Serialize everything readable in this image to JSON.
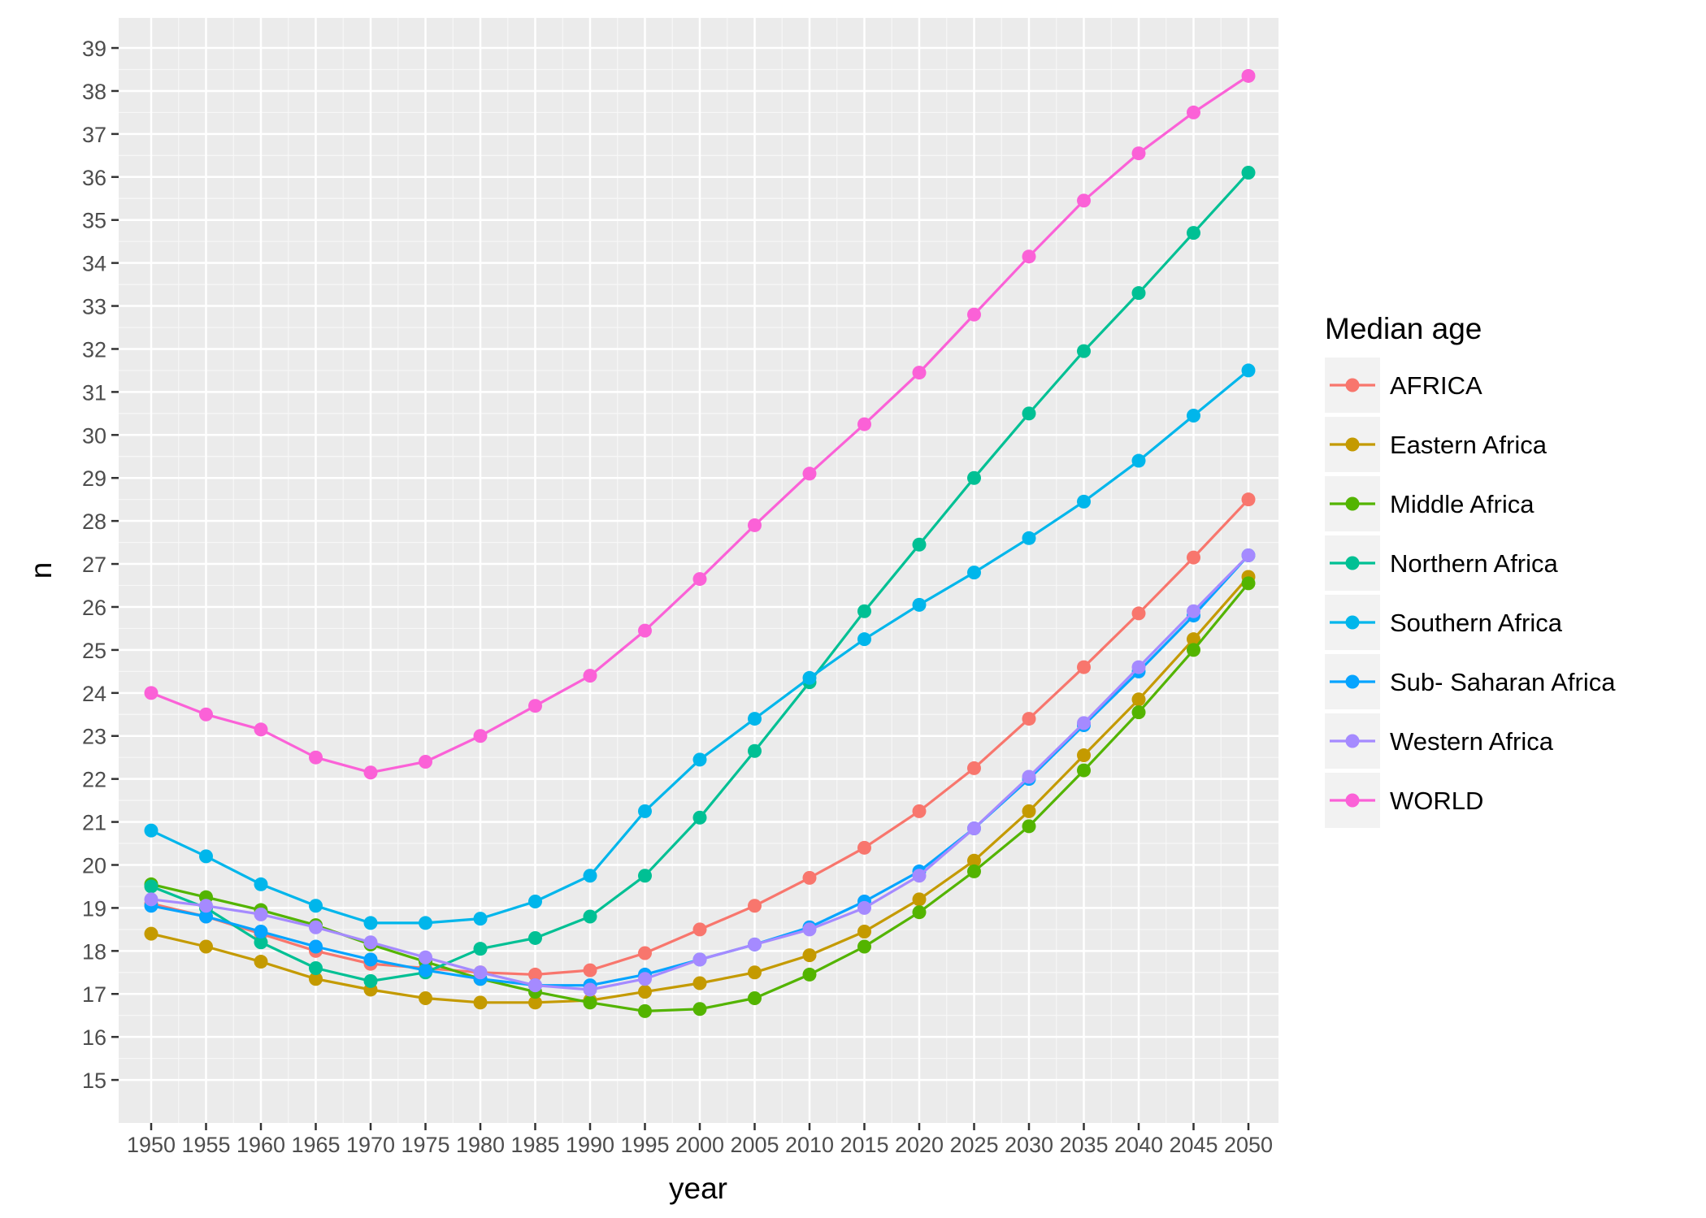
{
  "chart_data": {
    "type": "line",
    "xlabel": "year",
    "ylabel": "n",
    "legend_title": "Median age",
    "legend_position": "right",
    "grid": true,
    "background": "#ebebeb",
    "x": [
      1950,
      1955,
      1960,
      1965,
      1970,
      1975,
      1980,
      1985,
      1990,
      1995,
      2000,
      2005,
      2010,
      2015,
      2020,
      2025,
      2030,
      2035,
      2040,
      2045,
      2050
    ],
    "x_tick_labels": [
      "1950",
      "1955",
      "1960",
      "1965",
      "1970",
      "1975",
      "1980",
      "1985",
      "1990",
      "1995",
      "2000",
      "2005",
      "2010",
      "2015",
      "2020",
      "2025",
      "2030",
      "2035",
      "2040",
      "2045",
      "2050"
    ],
    "y_ticks": [
      15,
      16,
      17,
      18,
      19,
      20,
      21,
      22,
      23,
      24,
      25,
      26,
      27,
      28,
      29,
      30,
      31,
      32,
      33,
      34,
      35,
      36,
      37,
      38,
      39
    ],
    "y_tick_labels": [
      "15",
      "16",
      "17",
      "18",
      "19",
      "20",
      "21",
      "22",
      "23",
      "24",
      "25",
      "26",
      "27",
      "28",
      "29",
      "30",
      "31",
      "32",
      "33",
      "34",
      "35",
      "36",
      "37",
      "38",
      "39"
    ],
    "ylim": [
      14,
      39.7
    ],
    "series": [
      {
        "name": "AFRICA",
        "color": "#F8766D",
        "values": [
          19.1,
          18.8,
          18.4,
          18.0,
          17.7,
          17.6,
          17.5,
          17.45,
          17.55,
          17.95,
          18.5,
          19.05,
          19.7,
          20.4,
          21.25,
          22.25,
          23.4,
          24.6,
          25.85,
          27.15,
          28.5
        ]
      },
      {
        "name": "Eastern Africa",
        "color": "#C49A00",
        "values": [
          18.4,
          18.1,
          17.75,
          17.35,
          17.1,
          16.9,
          16.8,
          16.8,
          16.85,
          17.05,
          17.25,
          17.5,
          17.9,
          18.45,
          19.2,
          20.1,
          21.25,
          22.55,
          23.85,
          25.25,
          26.7
        ]
      },
      {
        "name": "Middle Africa",
        "color": "#53B400",
        "values": [
          19.55,
          19.25,
          18.95,
          18.6,
          18.15,
          17.75,
          17.35,
          17.05,
          16.8,
          16.6,
          16.65,
          16.9,
          17.45,
          18.1,
          18.9,
          19.85,
          20.9,
          22.2,
          23.55,
          25.0,
          26.55
        ]
      },
      {
        "name": "Northern Africa",
        "color": "#00C094",
        "values": [
          19.5,
          19.0,
          18.2,
          17.6,
          17.3,
          17.5,
          18.05,
          18.3,
          18.8,
          19.75,
          21.1,
          22.65,
          24.25,
          25.9,
          27.45,
          29.0,
          30.5,
          31.95,
          33.3,
          34.7,
          36.1
        ]
      },
      {
        "name": "Southern Africa",
        "color": "#00B6EB",
        "values": [
          20.8,
          20.2,
          19.55,
          19.05,
          18.65,
          18.65,
          18.75,
          19.15,
          19.75,
          21.25,
          22.45,
          23.4,
          24.35,
          25.25,
          26.05,
          26.8,
          27.6,
          28.45,
          29.4,
          30.45,
          31.5
        ]
      },
      {
        "name": "Sub- Saharan Africa",
        "color": "#06A4FF",
        "values": [
          19.05,
          18.8,
          18.45,
          18.1,
          17.8,
          17.55,
          17.35,
          17.2,
          17.2,
          17.45,
          17.8,
          18.15,
          18.55,
          19.15,
          19.85,
          20.85,
          22.0,
          23.25,
          24.5,
          25.8,
          27.2
        ]
      },
      {
        "name": "Western Africa",
        "color": "#A58AFF",
        "values": [
          19.2,
          19.05,
          18.85,
          18.55,
          18.2,
          17.85,
          17.5,
          17.2,
          17.1,
          17.35,
          17.8,
          18.15,
          18.5,
          19.0,
          19.75,
          20.85,
          22.05,
          23.3,
          24.6,
          25.9,
          27.2
        ]
      },
      {
        "name": "WORLD",
        "color": "#FB61D7",
        "values": [
          24.0,
          23.5,
          23.15,
          22.5,
          22.15,
          22.4,
          23.0,
          23.7,
          24.4,
          25.45,
          26.65,
          27.9,
          29.1,
          30.25,
          31.45,
          32.8,
          34.15,
          35.45,
          36.55,
          37.5,
          38.35
        ]
      }
    ]
  }
}
